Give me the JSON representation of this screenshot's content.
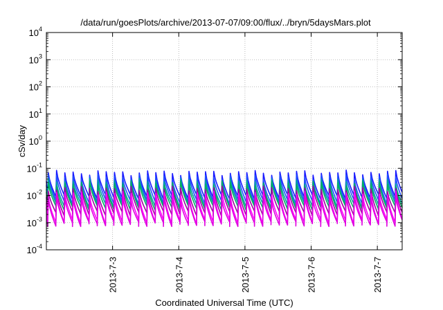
{
  "chart_data": {
    "type": "line",
    "title": "/data/run/goesPlots/archive/2013-07-07/09:00/flux/../bryn/5daysMars.plot",
    "xlabel": "Coordinated Universal Time (UTC)",
    "ylabel": "cSv/day",
    "y_scale": "log",
    "ylim": [
      0.0001,
      10000
    ],
    "y_ticks": [
      {
        "exp": -4,
        "label_base": "10",
        "label_exp": "-4"
      },
      {
        "exp": -3,
        "label_base": "10",
        "label_exp": "-3"
      },
      {
        "exp": -2,
        "label_base": "10",
        "label_exp": "-2"
      },
      {
        "exp": -1,
        "label_base": "10",
        "label_exp": "-1"
      },
      {
        "exp": 0,
        "label_base": "10",
        "label_exp": "0"
      },
      {
        "exp": 1,
        "label_base": "10",
        "label_exp": "1"
      },
      {
        "exp": 2,
        "label_base": "10",
        "label_exp": "2"
      },
      {
        "exp": 3,
        "label_base": "10",
        "label_exp": "3"
      },
      {
        "exp": 4,
        "label_base": "10",
        "label_exp": "4"
      }
    ],
    "xlim": [
      "2013-07-02 00:00",
      "2013-07-07 09:00"
    ],
    "x_ticks": [
      {
        "label": "2013-7-3",
        "day": 1.0
      },
      {
        "label": "2013-7-4",
        "day": 2.0
      },
      {
        "label": "2013-7-5",
        "day": 3.0
      },
      {
        "label": "2013-7-6",
        "day": 4.0
      },
      {
        "label": "2013-7-7",
        "day": 5.0
      }
    ],
    "x_range_days": [
      0,
      5.375
    ],
    "grid": true,
    "pattern": {
      "period_hours": 3,
      "note_values": "sawtooth: sharp rise at each 3-hour mark, decay until next mark"
    },
    "series": [
      {
        "color": "#1a1aff",
        "high": 0.07,
        "low": 0.009
      },
      {
        "color": "#2050ff",
        "high": 0.05,
        "low": 0.006
      },
      {
        "color": "#00a0a0",
        "high": 0.035,
        "low": 0.0045
      },
      {
        "color": "#00b060",
        "high": 0.028,
        "low": 0.0035
      },
      {
        "color": "#a000a0",
        "high": 0.018,
        "low": 0.0022
      },
      {
        "color": "#ff00ff",
        "high": 0.012,
        "low": 0.0011
      },
      {
        "color": "#e000e0",
        "high": 0.008,
        "low": 0.0009
      }
    ]
  }
}
